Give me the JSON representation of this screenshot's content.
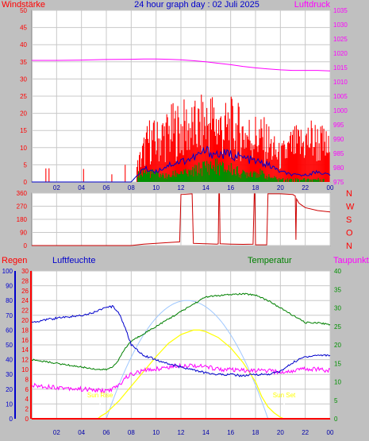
{
  "colors": {
    "background": "#c0c0c0",
    "plot_bg": "#ffffff",
    "grid": "#c8c8c8",
    "red": "#ff0000",
    "blue": "#0000cc",
    "magenta": "#ff00ff",
    "green": "#008000",
    "yellow": "#ffff00",
    "lightblue": "#9fc8ff",
    "darkred": "#cc0000",
    "navy": "#0000aa",
    "darkgreen": "#009000"
  },
  "header": {
    "title": "24 hour graph day : 02 Juli 2025",
    "left_label": "Windstärke",
    "right_label": "Luftdruck"
  },
  "time_ticks": [
    "02",
    "04",
    "06",
    "08",
    "10",
    "12",
    "14",
    "16",
    "18",
    "20",
    "22",
    "00"
  ],
  "bottom_labels": {
    "regen": "Regen",
    "luftfeuchte": "Luftfeuchte",
    "temperatur": "Temperatur",
    "taupunkt": "Taupunkt",
    "sunrise": "Sun Rise",
    "sunset": "Sun Set"
  },
  "compass_labels": [
    "N",
    "W",
    "S",
    "O",
    "N"
  ],
  "chart_data": [
    {
      "type": "bar",
      "name_left": "Windstärke",
      "name_right": "Luftdruck",
      "x_range_hours": [
        0,
        24
      ],
      "y_left": {
        "ticks": [
          0,
          5,
          10,
          15,
          20,
          25,
          30,
          35,
          40,
          45,
          50
        ],
        "range": [
          0,
          50
        ]
      },
      "y_right": {
        "ticks": [
          975,
          980,
          985,
          990,
          995,
          1000,
          1005,
          1010,
          1015,
          1020,
          1025,
          1030,
          1035
        ],
        "range": [
          975,
          1035
        ]
      },
      "series": [
        {
          "name": "Windstärke",
          "type": "bar",
          "axis": "left",
          "hours": [
            0,
            1,
            2,
            3,
            4,
            5,
            6,
            7,
            8,
            8.5,
            9,
            9.5,
            10,
            10.5,
            11,
            11.5,
            12,
            12.5,
            13,
            13.5,
            14,
            14.5,
            15,
            15.5,
            16,
            16.5,
            17,
            17.5,
            18,
            18.5,
            19,
            19.5,
            20,
            20.5,
            21,
            21.5,
            22,
            22.5,
            23,
            23.5,
            24
          ],
          "values": [
            0,
            0,
            0,
            0,
            0,
            0,
            0,
            0,
            0,
            5,
            10,
            14,
            13,
            15,
            16,
            17,
            17,
            18,
            17,
            18,
            19,
            20,
            18,
            17,
            18,
            17,
            16,
            15,
            15,
            14,
            13,
            10,
            8,
            10,
            12,
            12,
            13,
            14,
            13,
            12,
            10
          ]
        },
        {
          "name": "Windstärke Mittel",
          "type": "line",
          "axis": "left",
          "hours": [
            0,
            8,
            8.5,
            9,
            10,
            11,
            12,
            13,
            14,
            15,
            16,
            17,
            18,
            19,
            20,
            21,
            22,
            23,
            24
          ],
          "values": [
            0,
            0,
            2,
            4,
            3,
            5,
            6,
            7,
            9,
            8,
            8,
            7,
            6,
            5,
            3,
            2,
            2,
            3,
            2
          ]
        },
        {
          "name": "Böen",
          "type": "bar",
          "axis": "left",
          "hours": [
            8.5,
            9,
            10,
            11,
            12,
            12.5,
            13,
            13.5,
            14,
            14.5,
            15,
            15.5,
            16,
            17,
            18,
            19,
            20,
            21,
            22,
            23
          ],
          "values": [
            3,
            4,
            3,
            2,
            4,
            3,
            4,
            5,
            6,
            6,
            6,
            5,
            5,
            3,
            4,
            2,
            1,
            1,
            1,
            1
          ]
        },
        {
          "name": "Luftdruck",
          "type": "line",
          "axis": "right",
          "hours": [
            0,
            2,
            4,
            6,
            8,
            9,
            10,
            11,
            12,
            13,
            14,
            15,
            16,
            17,
            18,
            19,
            20,
            21,
            22,
            23,
            24
          ],
          "values": [
            1017.5,
            1017.5,
            1017.6,
            1017.8,
            1017.9,
            1018.0,
            1018.0,
            1017.9,
            1017.7,
            1017.4,
            1017.0,
            1016.5,
            1016.0,
            1015.4,
            1014.9,
            1014.5,
            1014.2,
            1014.0,
            1014.0,
            1014.0,
            1013.8
          ]
        }
      ]
    },
    {
      "type": "line",
      "name": "Windrichtung",
      "y_left": {
        "ticks": [
          0,
          90,
          180,
          270,
          360
        ],
        "range": [
          0,
          360
        ]
      },
      "series": [
        {
          "name": "Windrichtung",
          "hours": [
            0,
            6,
            8,
            9,
            10,
            11,
            11.9,
            12,
            12.9,
            13,
            14,
            14.9,
            15,
            15.05,
            15.1,
            15.15,
            16,
            17,
            17.8,
            17.9,
            17.95,
            18,
            18.9,
            19,
            19.1,
            19.2,
            20,
            21,
            21.2,
            21.25,
            21.3,
            21.5,
            22,
            23,
            24
          ],
          "values": [
            0,
            0,
            0,
            10,
            15,
            20,
            25,
            350,
            355,
            15,
            12,
            10,
            12,
            355,
            355,
            12,
            10,
            8,
            10,
            355,
            355,
            5,
            5,
            355,
            355,
            355,
            355,
            350,
            340,
            40,
            320,
            290,
            260,
            240,
            230
          ]
        }
      ]
    },
    {
      "type": "line",
      "name": "Klima",
      "axes": {
        "luftfeuchte": {
          "ticks": [
            0,
            10,
            20,
            30,
            40,
            50,
            60,
            70,
            80,
            90,
            100
          ],
          "range": [
            0,
            100
          ]
        },
        "regen": {
          "ticks": [
            0,
            2,
            4,
            6,
            8,
            10,
            12,
            14,
            16,
            18,
            20,
            22,
            24,
            26,
            28,
            30
          ],
          "range": [
            0,
            30
          ]
        },
        "temperatur": {
          "ticks": [
            0,
            5,
            10,
            15,
            20,
            25,
            30,
            35,
            40
          ],
          "range": [
            0,
            40
          ]
        }
      },
      "series": [
        {
          "name": "Luftfeuchte",
          "axis": "luftfeuchte",
          "hours": [
            0,
            1,
            2,
            3,
            4,
            5,
            5.5,
            6,
            6.5,
            7,
            7.5,
            8,
            9,
            10,
            11,
            12,
            13,
            14,
            15,
            16,
            17,
            18,
            19,
            20,
            21,
            22,
            23,
            24
          ],
          "values": [
            65,
            67,
            68,
            69,
            70,
            72,
            74,
            75,
            76,
            72,
            62,
            50,
            43,
            40,
            37,
            35,
            33,
            31,
            30,
            30,
            29,
            30,
            30,
            32,
            38,
            42,
            43,
            43
          ]
        },
        {
          "name": "Temperatur",
          "axis": "temperatur",
          "hours": [
            0,
            1,
            2,
            3,
            4,
            5,
            5.5,
            6,
            6.5,
            7,
            7.5,
            8,
            9,
            10,
            11,
            12,
            13,
            14,
            15,
            16,
            17,
            18,
            19,
            20,
            21,
            22,
            23,
            24
          ],
          "values": [
            16,
            15.5,
            15,
            14.5,
            14,
            13.5,
            13.3,
            13.3,
            14,
            16,
            19,
            21,
            23,
            25,
            27,
            29,
            31,
            33,
            33.3,
            33.6,
            33.8,
            33.5,
            32,
            30,
            28,
            26,
            26,
            25.5
          ]
        },
        {
          "name": "Taupunkt",
          "axis": "temperatur",
          "hours": [
            0,
            1,
            2,
            3,
            4,
            5,
            5.5,
            6,
            6.5,
            7,
            7.5,
            8,
            9,
            10,
            11,
            12,
            13,
            14,
            15,
            16,
            17,
            18,
            19,
            20,
            21,
            22,
            23,
            24
          ],
          "values": [
            9,
            8.8,
            8.5,
            8.3,
            8,
            7.8,
            7.6,
            7.6,
            8,
            9,
            11,
            12,
            13,
            13.5,
            14,
            14.5,
            14.5,
            14,
            13.5,
            13.2,
            13,
            13,
            13,
            12.5,
            13,
            13.5,
            13.5,
            13
          ]
        },
        {
          "name": "Sonnenstrahlung",
          "axis": "luftfeuchte",
          "hours": [
            0,
            5.3,
            5.6,
            6,
            7,
            8,
            9,
            10,
            11,
            12,
            13,
            13.5,
            14,
            15,
            16,
            17,
            18,
            18.5,
            19,
            19.5,
            20,
            20.3,
            24
          ],
          "values": [
            0,
            0,
            2,
            4,
            12,
            22,
            32,
            42,
            51,
            57,
            60,
            60,
            59,
            55,
            48,
            38,
            25,
            15,
            8,
            4,
            1,
            0,
            0
          ]
        },
        {
          "name": "Regen",
          "axis": "regen",
          "hours": [
            0,
            24
          ],
          "values": [
            0,
            0
          ]
        }
      ],
      "annotations": [
        {
          "text": "Sun Rise",
          "hour": 5.5
        },
        {
          "text": "Sun Set",
          "hour": 20.3
        }
      ]
    }
  ]
}
